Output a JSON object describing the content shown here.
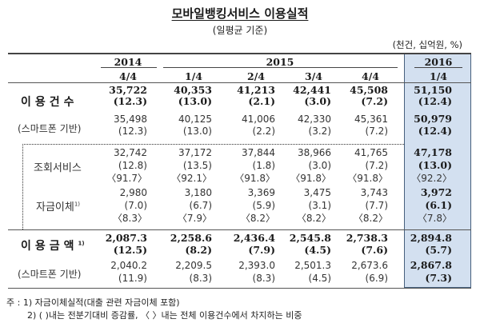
{
  "title": "모바일뱅킹서비스 이용실적",
  "subtitle": "(일평균 기준)",
  "units": "(천건, 십억원, %)",
  "header": {
    "years": [
      "2014",
      "2015",
      "2016"
    ],
    "quarters": [
      "4/4",
      "1/4",
      "2/4",
      "3/4",
      "4/4",
      "1/4"
    ]
  },
  "rows": {
    "usage_count": {
      "label": "이용건수",
      "values": [
        "35,722",
        "40,353",
        "41,213",
        "42,441",
        "45,508",
        "51,150"
      ],
      "growth": [
        "(12.3)",
        "(13.0)",
        "(2.1)",
        "(3.0)",
        "(7.2)",
        "(12.4)"
      ]
    },
    "usage_count_smartphone": {
      "label": "(스마트폰 기반)",
      "values": [
        "35,498",
        "40,125",
        "41,006",
        "42,330",
        "45,361",
        "50,979"
      ],
      "growth": [
        "(12.3)",
        "(13.0)",
        "(2.2)",
        "(3.2)",
        "(7.2)",
        "(12.4)"
      ]
    },
    "inquiry_service": {
      "label": "조회서비스",
      "values": [
        "32,742",
        "37,172",
        "37,844",
        "38,966",
        "41,765",
        "47,178"
      ],
      "growth": [
        "(12.8)",
        "(13.5)",
        "(1.8)",
        "(3.0)",
        "(7.2)",
        "(13.0)"
      ],
      "share": [
        "〈91.7〉",
        "〈92.1〉",
        "〈91.8〉",
        "〈91.8〉",
        "〈91.8〉",
        "〈92.2〉"
      ]
    },
    "fund_transfer": {
      "label": "자금이체",
      "sup": "1)",
      "values": [
        "2,980",
        "3,180",
        "3,369",
        "3,475",
        "3,743",
        "3,972"
      ],
      "growth": [
        "(7.0)",
        "(6.7)",
        "(5.9)",
        "(3.1)",
        "(7.7)",
        "(6.1)"
      ],
      "share": [
        "〈8.3〉",
        "〈7.9〉",
        "〈8.2〉",
        "〈8.2〉",
        "〈8.2〉",
        "〈7.8〉"
      ]
    },
    "usage_amount": {
      "label": "이용금액",
      "sup": "1)",
      "values": [
        "2,087.3",
        "2,258.6",
        "2,436.4",
        "2,545.8",
        "2,738.3",
        "2,894.8"
      ],
      "growth": [
        "(12.5)",
        "(8.2)",
        "(7.9)",
        "(4.5)",
        "(7.6)",
        "(5.7)"
      ]
    },
    "usage_amount_smartphone": {
      "label": "(스마트폰 기반)",
      "values": [
        "2,040.2",
        "2,209.5",
        "2,393.0",
        "2,501.3",
        "2,673.6",
        "2,867.8"
      ],
      "growth": [
        "(11.9)",
        "(8.3)",
        "(8.3)",
        "(4.5)",
        "(6.9)",
        "(7.3)"
      ]
    }
  },
  "notes": {
    "line1": "주 : 1) 자금이체실적(대출 관련 자금이체 포함)",
    "line2": "2) (   )내는 전분기대비 증감률, 〈   〉내는 전체 이용건수에서 차지하는 비중"
  },
  "colors": {
    "highlight_fill": "#d3e0f0",
    "highlight_border": "#47607d"
  }
}
